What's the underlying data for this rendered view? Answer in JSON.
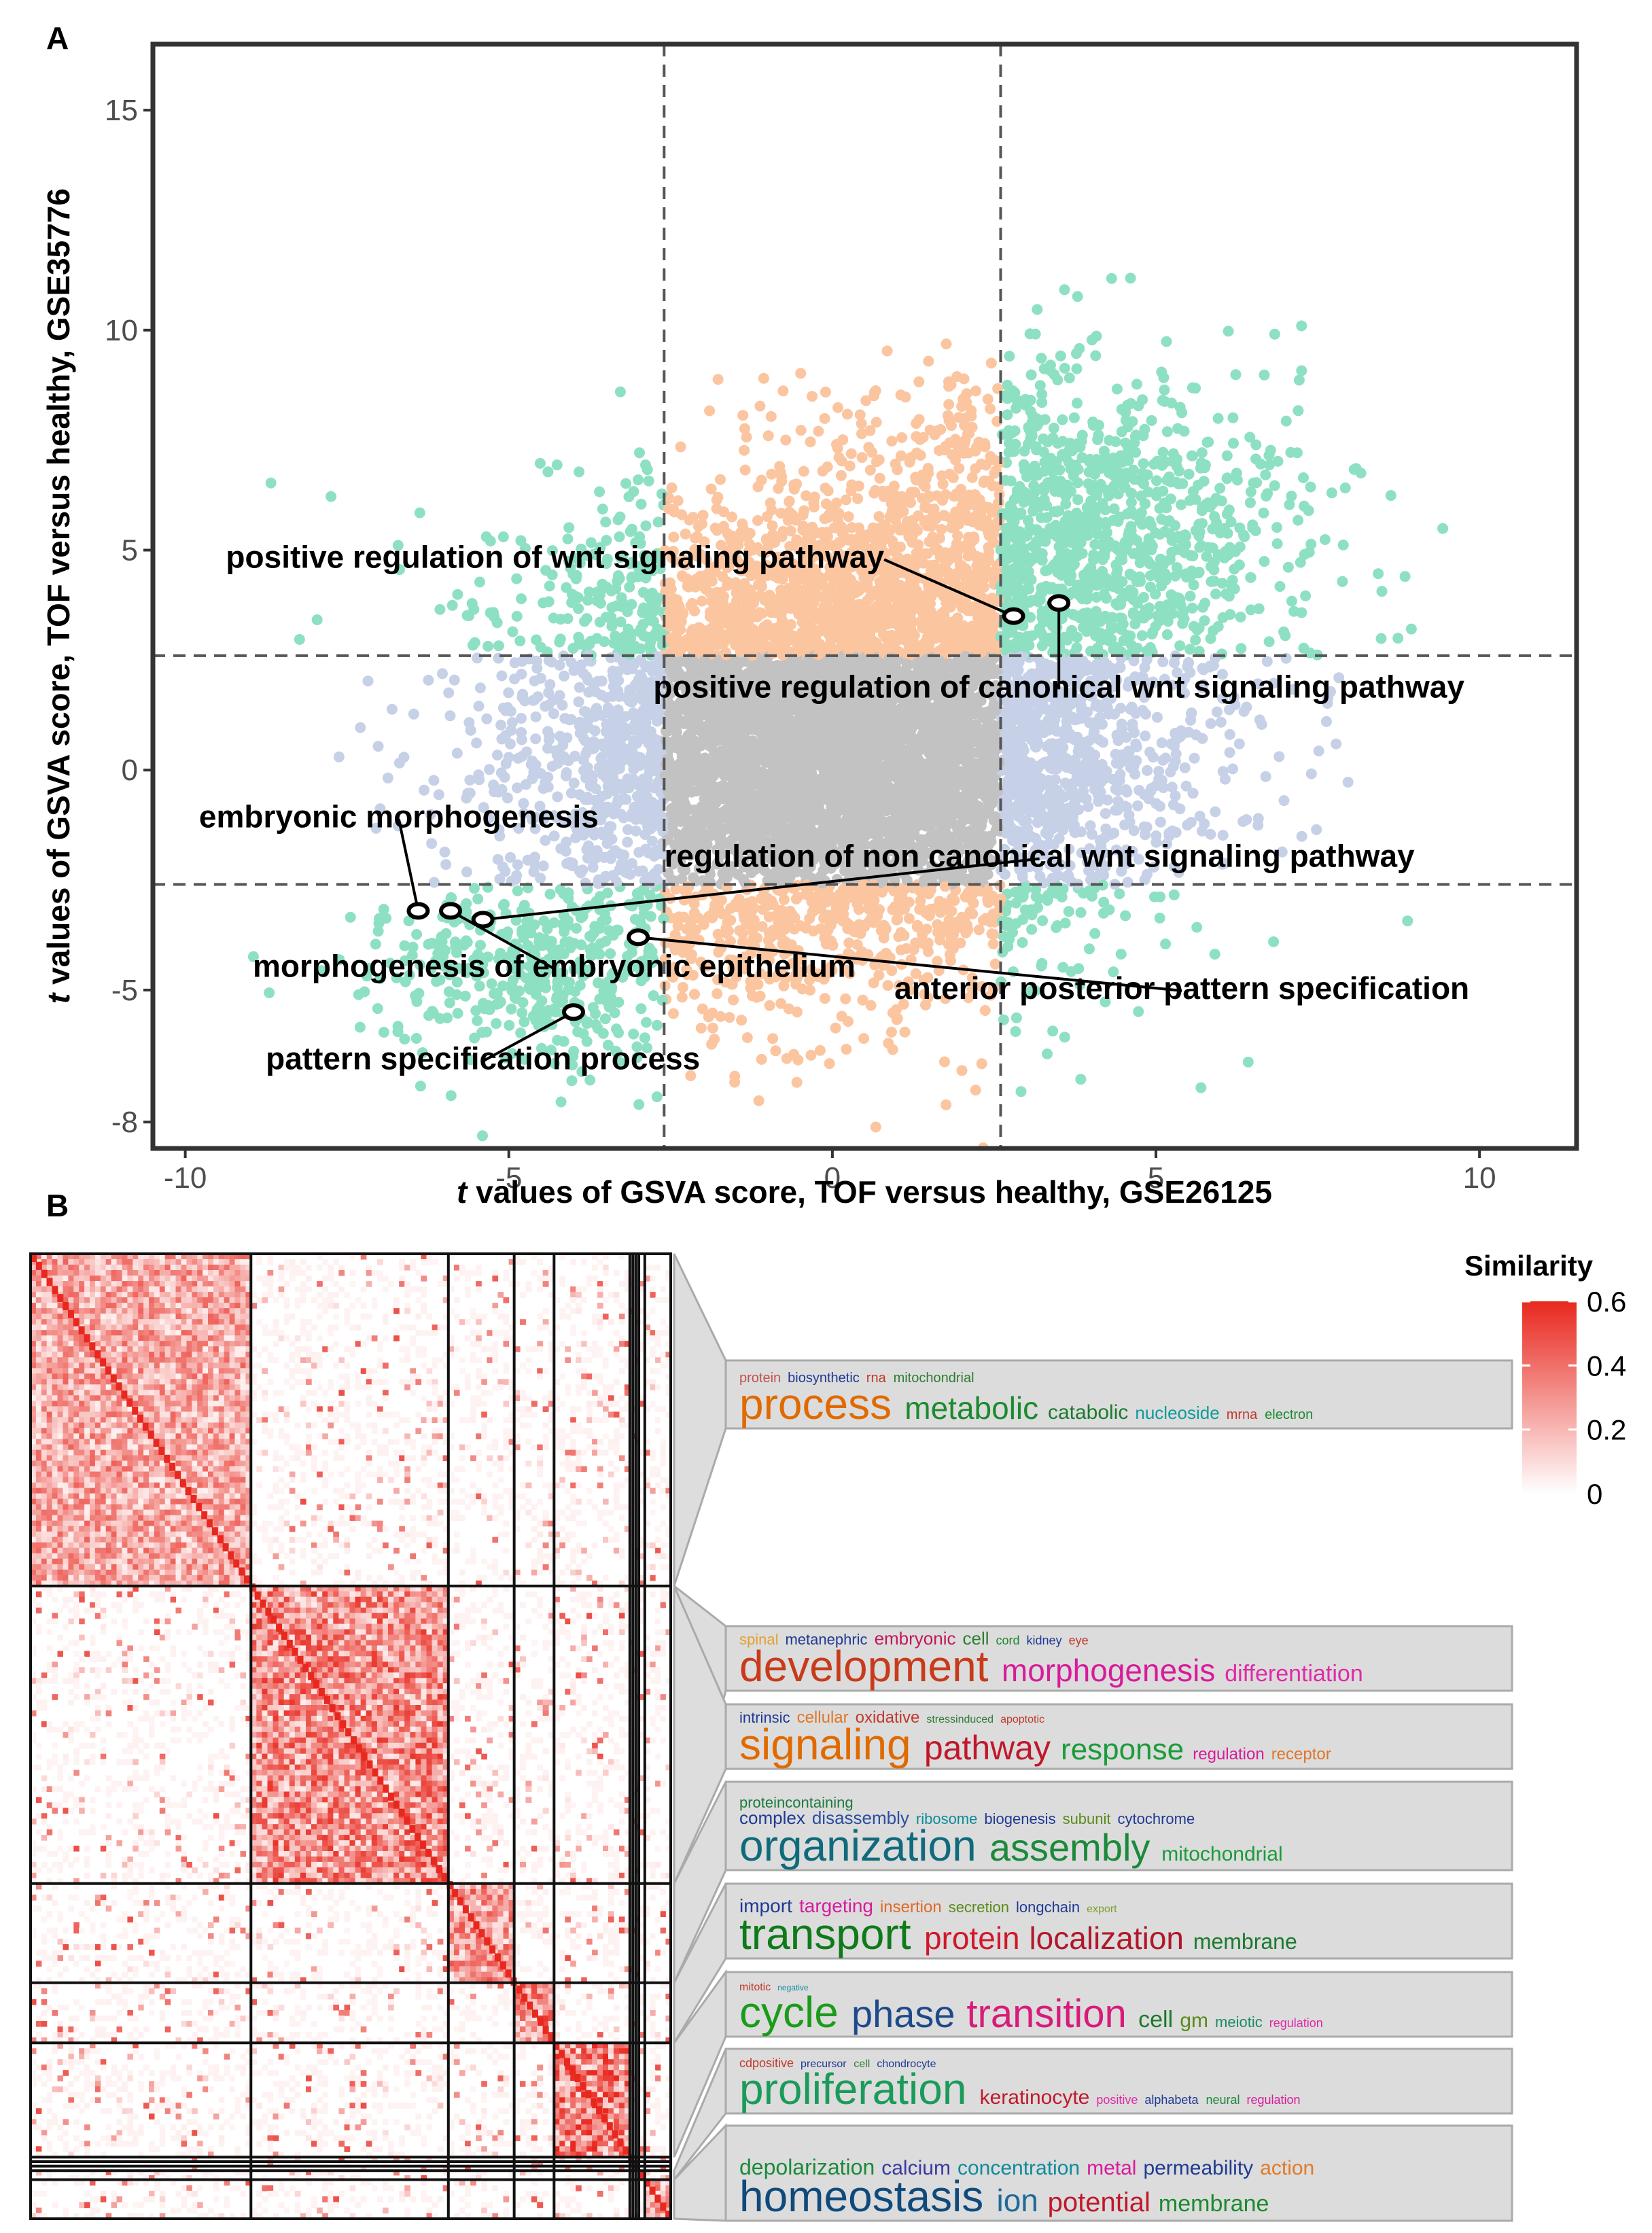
{
  "panel_a": {
    "letter": "A"
  },
  "panel_b": {
    "letter": "B"
  },
  "colors": {
    "orange": "#fbc5a0",
    "teal": "#8ee0c3",
    "blue": "#c6d0e6",
    "gray": "#c2c2c2",
    "heat_high": "#e8281e",
    "panel_fill": "#dcdcdc"
  },
  "chart_data": [
    {
      "type": "scatter",
      "title": "",
      "xlabel_italic": "t",
      "xlabel": " values of GSVA score, TOF versus healthy, GSE26125",
      "ylabel_italic": "t",
      "ylabel": " values of GSVA score, TOF versus healthy, GSE35776",
      "xlim": [
        -10.5,
        11.5
      ],
      "ylim": [
        -8.6,
        16.5
      ],
      "xticks": [
        -10,
        -5,
        0,
        5,
        10
      ],
      "yticks": [
        -8,
        -5,
        0,
        5,
        10,
        15
      ],
      "threshold_x": [
        -2.6,
        2.6
      ],
      "threshold_y": [
        -2.6,
        2.6
      ],
      "n_points_approx": 9000,
      "quadrant_colors": {
        "x_sig_y_sig": "teal",
        "x_nonsig_y_sig": "orange",
        "x_sig_y_nonsig": "blue",
        "x_nonsig_y_nonsig": "gray"
      },
      "highlighted": [
        {
          "label": "positive regulation of wnt signaling pathway",
          "x": 2.8,
          "y": 3.5,
          "label_x": 0.8,
          "label_y": 4.6,
          "anchor": "end"
        },
        {
          "label": "positive regulation of canonical wnt signaling pathway",
          "x": 3.5,
          "y": 3.8,
          "label_x": 3.5,
          "label_y": 1.65,
          "anchor": "middle"
        },
        {
          "label": "embryonic morphogenesis",
          "x": -6.4,
          "y": -3.2,
          "label_x": -6.7,
          "label_y": -1.3,
          "anchor": "middle"
        },
        {
          "label": "regulation of non canonical wnt signaling pathway",
          "x": -5.4,
          "y": -3.4,
          "label_x": 3.2,
          "label_y": -2.2,
          "anchor": "middle"
        },
        {
          "label": "morphogenesis of embryonic epithelium",
          "x": -5.9,
          "y": -3.2,
          "label_x": -4.3,
          "label_y": -4.7,
          "anchor": "middle"
        },
        {
          "label": "anterior posterior pattern specification",
          "x": -3.0,
          "y": -3.8,
          "label_x": 5.4,
          "label_y": -5.2,
          "anchor": "middle"
        },
        {
          "label": "pattern specification process",
          "x": -4.0,
          "y": -5.5,
          "label_x": -5.4,
          "label_y": -6.8,
          "anchor": "middle"
        }
      ]
    },
    {
      "type": "heatmap",
      "title": "",
      "legend_title": "Similarity",
      "legend_ticks": [
        "0.6",
        "0.4",
        "0.2",
        "0"
      ],
      "legend_range": [
        0,
        0.6
      ],
      "cluster_sizes": [
        221,
        198,
        66,
        40,
        76,
        3,
        3,
        3,
        6,
        26
      ],
      "cluster_mean_similarity": [
        0.35,
        0.45,
        0.4,
        0.45,
        0.5,
        0.3,
        0.3,
        0.3,
        0.3,
        0.35
      ]
    }
  ],
  "word_clouds": [
    {
      "rows": [
        [
          {
            "t": "protein",
            "s": 20,
            "c": "#c0504d"
          },
          {
            "t": "biosynthetic",
            "s": 20,
            "c": "#1f3a93"
          },
          {
            "t": "rna",
            "s": 20,
            "c": "#c0392b"
          },
          {
            "t": "mitochondrial",
            "s": 20,
            "c": "#2e7d32"
          }
        ],
        [
          {
            "t": "process",
            "s": 64,
            "c": "#e06a00"
          },
          {
            "t": "metabolic",
            "s": 46,
            "c": "#1b8a2e"
          },
          {
            "t": "catabolic",
            "s": 30,
            "c": "#1b7a2e"
          },
          {
            "t": "nucleoside",
            "s": 26,
            "c": "#0f9b9b"
          },
          {
            "t": "mrna",
            "s": 20,
            "c": "#c0392b"
          },
          {
            "t": "electron",
            "s": 20,
            "c": "#1b8a2e"
          }
        ]
      ]
    },
    {
      "rows": [
        [
          {
            "t": "spinal",
            "s": 22,
            "c": "#e69e2e"
          },
          {
            "t": "metanephric",
            "s": 22,
            "c": "#1f3a93"
          },
          {
            "t": "embryonic",
            "s": 26,
            "c": "#c2185b"
          },
          {
            "t": "cell",
            "s": 26,
            "c": "#2e7d32"
          },
          {
            "t": "cord",
            "s": 18,
            "c": "#1b8a2e"
          },
          {
            "t": "kidney",
            "s": 18,
            "c": "#1f3a93"
          },
          {
            "t": "eye",
            "s": 18,
            "c": "#c0392b"
          }
        ],
        [
          {
            "t": "development",
            "s": 64,
            "c": "#c83a1a"
          },
          {
            "t": "morphogenesis",
            "s": 46,
            "c": "#d81b9b"
          },
          {
            "t": "differentiation",
            "s": 34,
            "c": "#e02aa8"
          }
        ]
      ]
    },
    {
      "rows": [
        [
          {
            "t": "intrinsic",
            "s": 22,
            "c": "#1f3a93"
          },
          {
            "t": "cellular",
            "s": 24,
            "c": "#e0762a"
          },
          {
            "t": "oxidative",
            "s": 24,
            "c": "#c0392b"
          },
          {
            "t": "stressinduced",
            "s": 16,
            "c": "#2e7d32"
          },
          {
            "t": "apoptotic",
            "s": 16,
            "c": "#c0392b"
          }
        ],
        [
          {
            "t": "signaling",
            "s": 64,
            "c": "#e06a00"
          },
          {
            "t": "pathway",
            "s": 50,
            "c": "#c0182b"
          },
          {
            "t": "response",
            "s": 44,
            "c": "#1b9b3a"
          },
          {
            "t": "regulation",
            "s": 24,
            "c": "#d81b9b"
          },
          {
            "t": "receptor",
            "s": 24,
            "c": "#e0762a"
          }
        ]
      ]
    },
    {
      "rows": [
        [
          {
            "t": "proteincontaining",
            "s": 22,
            "c": "#1b7a3e"
          }
        ],
        [
          {
            "t": "complex",
            "s": 26,
            "c": "#1f3a93"
          },
          {
            "t": "disassembly",
            "s": 26,
            "c": "#2c4ea0"
          },
          {
            "t": "ribosome",
            "s": 22,
            "c": "#0f8b9b"
          },
          {
            "t": "biogenesis",
            "s": 22,
            "c": "#1f3a93"
          },
          {
            "t": "subunit",
            "s": 22,
            "c": "#5a8a1a"
          },
          {
            "t": "cytochrome",
            "s": 22,
            "c": "#1f3a93"
          }
        ],
        [
          {
            "t": "organization",
            "s": 64,
            "c": "#0f6b7b"
          },
          {
            "t": "assembly",
            "s": 56,
            "c": "#1b8a3a"
          },
          {
            "t": "mitochondrial",
            "s": 30,
            "c": "#1b9b3a"
          }
        ]
      ]
    },
    {
      "rows": [
        [
          {
            "t": "import",
            "s": 28,
            "c": "#1f3a93"
          },
          {
            "t": "targeting",
            "s": 28,
            "c": "#d81b9b"
          },
          {
            "t": "insertion",
            "s": 24,
            "c": "#e06a2a"
          },
          {
            "t": "secretion",
            "s": 22,
            "c": "#5a8a1a"
          },
          {
            "t": "longchain",
            "s": 22,
            "c": "#1f3a93"
          },
          {
            "t": "export",
            "s": 16,
            "c": "#7fa02a"
          }
        ],
        [
          {
            "t": "transport",
            "s": 64,
            "c": "#0f7a1a"
          },
          {
            "t": "protein",
            "s": 46,
            "c": "#d0182b"
          },
          {
            "t": "localization",
            "s": 46,
            "c": "#b0182b"
          },
          {
            "t": "membrane",
            "s": 32,
            "c": "#1b7a2e"
          }
        ]
      ]
    },
    {
      "rows": [
        [
          {
            "t": "mitotic",
            "s": 16,
            "c": "#c0392b"
          },
          {
            "t": "negative",
            "s": 12,
            "c": "#0f8b9b"
          }
        ],
        [
          {
            "t": "cycle",
            "s": 64,
            "c": "#1b9b1a"
          },
          {
            "t": "phase",
            "s": 56,
            "c": "#1f4a8a"
          },
          {
            "t": "transition",
            "s": 58,
            "c": "#d81b7b"
          },
          {
            "t": "cell",
            "s": 34,
            "c": "#1b7a2e"
          },
          {
            "t": "gm",
            "s": 30,
            "c": "#5a8a1a"
          },
          {
            "t": "meiotic",
            "s": 22,
            "c": "#1b8a6a"
          },
          {
            "t": "regulation",
            "s": 18,
            "c": "#e02aa8"
          }
        ]
      ]
    },
    {
      "rows": [
        [
          {
            "t": "cdpositive",
            "s": 18,
            "c": "#c0392b"
          },
          {
            "t": "precursor",
            "s": 16,
            "c": "#1f3a93"
          },
          {
            "t": "cell",
            "s": 16,
            "c": "#2e7d32"
          },
          {
            "t": "chondrocyte",
            "s": 16,
            "c": "#1f3a93"
          }
        ],
        [
          {
            "t": "proliferation",
            "s": 64,
            "c": "#1b9b5a"
          },
          {
            "t": "keratinocyte",
            "s": 30,
            "c": "#c0182b"
          },
          {
            "t": "positive",
            "s": 18,
            "c": "#e02aa8"
          },
          {
            "t": "alphabeta",
            "s": 18,
            "c": "#1f3a93"
          },
          {
            "t": "neural",
            "s": 18,
            "c": "#1b8a3a"
          },
          {
            "t": "regulation",
            "s": 18,
            "c": "#d81b9b"
          }
        ]
      ]
    },
    {
      "rows": [
        [
          {
            "t": "depolarization",
            "s": 32,
            "c": "#1b8a3a"
          },
          {
            "t": "calcium",
            "s": 30,
            "c": "#3a3aa0"
          },
          {
            "t": "concentration",
            "s": 30,
            "c": "#0f8b9b"
          },
          {
            "t": "metal",
            "s": 30,
            "c": "#d81b9b"
          },
          {
            "t": "permeability",
            "s": 30,
            "c": "#1f3a93"
          },
          {
            "t": "action",
            "s": 30,
            "c": "#e07a2a"
          }
        ],
        [
          {
            "t": "homeostasis",
            "s": 64,
            "c": "#0f4a7b"
          },
          {
            "t": "ion",
            "s": 46,
            "c": "#1f6a9b"
          },
          {
            "t": "potential",
            "s": 40,
            "c": "#c0182b"
          },
          {
            "t": "membrane",
            "s": 34,
            "c": "#1b8a2e"
          }
        ]
      ]
    }
  ]
}
